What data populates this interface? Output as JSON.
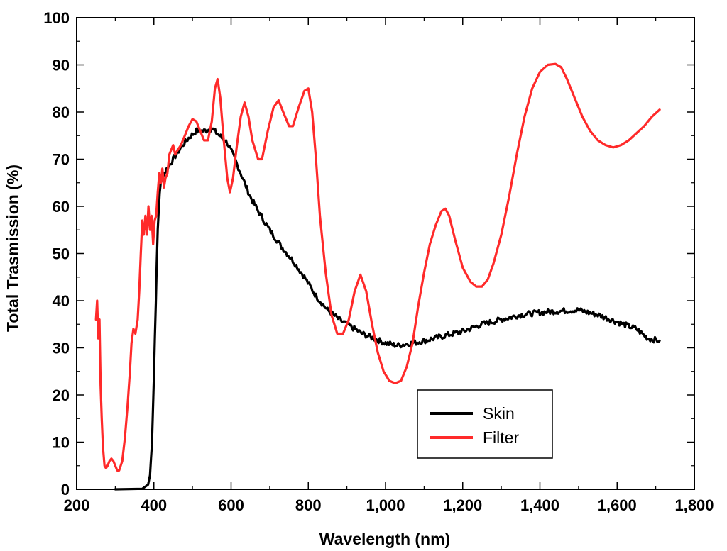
{
  "chart_data": {
    "type": "line",
    "title": "",
    "xlabel": "Wavelength (nm)",
    "ylabel": "Total Trasmission (%)",
    "xlim": [
      200,
      1800
    ],
    "ylim": [
      0,
      100
    ],
    "x_ticks": [
      200,
      400,
      600,
      800,
      1000,
      1200,
      1400,
      1600,
      1800
    ],
    "x_tick_labels": [
      "200",
      "400",
      "600",
      "800",
      "1,000",
      "1,200",
      "1,400",
      "1,600",
      "1,800"
    ],
    "y_ticks": [
      0,
      10,
      20,
      30,
      40,
      50,
      60,
      70,
      80,
      90,
      100
    ],
    "y_tick_labels": [
      "0",
      "10",
      "20",
      "30",
      "40",
      "50",
      "60",
      "70",
      "80",
      "90",
      "100"
    ],
    "grid": false,
    "legend_position": "bottom-right",
    "series": [
      {
        "name": "Skin",
        "color": "#000000",
        "noise": 0.6,
        "points": [
          [
            300,
            0
          ],
          [
            370,
            0.1
          ],
          [
            385,
            1
          ],
          [
            390,
            3
          ],
          [
            395,
            10
          ],
          [
            400,
            24
          ],
          [
            405,
            40
          ],
          [
            410,
            55
          ],
          [
            415,
            63
          ],
          [
            420,
            66
          ],
          [
            430,
            67.5
          ],
          [
            450,
            70
          ],
          [
            470,
            72.5
          ],
          [
            490,
            74.5
          ],
          [
            510,
            76
          ],
          [
            530,
            76
          ],
          [
            550,
            76.5
          ],
          [
            570,
            75
          ],
          [
            590,
            73.5
          ],
          [
            610,
            70
          ],
          [
            630,
            66
          ],
          [
            650,
            62
          ],
          [
            670,
            59
          ],
          [
            700,
            55
          ],
          [
            730,
            51.5
          ],
          [
            760,
            48.5
          ],
          [
            790,
            45
          ],
          [
            820,
            41
          ],
          [
            850,
            38
          ],
          [
            880,
            36
          ],
          [
            910,
            34.5
          ],
          [
            940,
            33
          ],
          [
            970,
            32
          ],
          [
            1000,
            31
          ],
          [
            1030,
            30.5
          ],
          [
            1070,
            31
          ],
          [
            1100,
            31.5
          ],
          [
            1150,
            32.5
          ],
          [
            1200,
            33.5
          ],
          [
            1250,
            35
          ],
          [
            1300,
            36
          ],
          [
            1350,
            37
          ],
          [
            1400,
            37.5
          ],
          [
            1450,
            37.8
          ],
          [
            1500,
            38
          ],
          [
            1550,
            37
          ],
          [
            1600,
            35.5
          ],
          [
            1650,
            34
          ],
          [
            1680,
            32
          ],
          [
            1710,
            31.5
          ]
        ]
      },
      {
        "name": "Filter",
        "color": "#ff2a2a",
        "noise": 0,
        "points": [
          [
            250,
            36
          ],
          [
            253,
            40
          ],
          [
            256,
            32
          ],
          [
            259,
            36
          ],
          [
            262,
            22
          ],
          [
            265,
            15
          ],
          [
            268,
            9
          ],
          [
            272,
            5
          ],
          [
            276,
            4.5
          ],
          [
            280,
            5
          ],
          [
            285,
            6
          ],
          [
            290,
            6.5
          ],
          [
            295,
            6
          ],
          [
            300,
            5
          ],
          [
            305,
            4
          ],
          [
            310,
            4
          ],
          [
            318,
            6
          ],
          [
            325,
            11
          ],
          [
            332,
            18
          ],
          [
            338,
            25
          ],
          [
            342,
            31
          ],
          [
            347,
            34
          ],
          [
            352,
            33
          ],
          [
            358,
            36
          ],
          [
            362,
            42
          ],
          [
            366,
            50
          ],
          [
            370,
            57
          ],
          [
            374,
            54
          ],
          [
            378,
            58
          ],
          [
            382,
            54
          ],
          [
            386,
            60
          ],
          [
            390,
            55
          ],
          [
            394,
            58
          ],
          [
            398,
            52
          ],
          [
            402,
            57
          ],
          [
            406,
            58
          ],
          [
            410,
            63
          ],
          [
            414,
            67
          ],
          [
            418,
            65
          ],
          [
            422,
            68
          ],
          [
            426,
            64
          ],
          [
            430,
            66
          ],
          [
            435,
            67
          ],
          [
            440,
            71
          ],
          [
            445,
            72
          ],
          [
            450,
            73
          ],
          [
            455,
            71
          ],
          [
            462,
            72
          ],
          [
            470,
            73
          ],
          [
            480,
            75
          ],
          [
            490,
            77
          ],
          [
            500,
            78.5
          ],
          [
            510,
            78
          ],
          [
            520,
            76
          ],
          [
            530,
            74
          ],
          [
            540,
            74
          ],
          [
            550,
            78
          ],
          [
            558,
            85
          ],
          [
            565,
            87
          ],
          [
            572,
            83
          ],
          [
            580,
            75
          ],
          [
            590,
            66
          ],
          [
            597,
            63
          ],
          [
            605,
            66
          ],
          [
            615,
            73
          ],
          [
            625,
            79
          ],
          [
            635,
            82
          ],
          [
            645,
            79
          ],
          [
            655,
            74
          ],
          [
            670,
            70
          ],
          [
            680,
            70
          ],
          [
            695,
            76
          ],
          [
            710,
            81
          ],
          [
            723,
            82.5
          ],
          [
            735,
            80
          ],
          [
            750,
            77
          ],
          [
            760,
            77
          ],
          [
            775,
            81
          ],
          [
            790,
            84.5
          ],
          [
            800,
            85
          ],
          [
            810,
            80
          ],
          [
            820,
            70
          ],
          [
            830,
            58
          ],
          [
            845,
            46
          ],
          [
            860,
            37
          ],
          [
            875,
            33
          ],
          [
            890,
            33
          ],
          [
            905,
            36
          ],
          [
            920,
            42
          ],
          [
            935,
            45.5
          ],
          [
            950,
            42
          ],
          [
            965,
            35
          ],
          [
            980,
            29
          ],
          [
            995,
            25
          ],
          [
            1010,
            23
          ],
          [
            1025,
            22.5
          ],
          [
            1040,
            23
          ],
          [
            1055,
            26
          ],
          [
            1070,
            31
          ],
          [
            1085,
            39
          ],
          [
            1100,
            46
          ],
          [
            1115,
            52
          ],
          [
            1130,
            56
          ],
          [
            1145,
            59
          ],
          [
            1155,
            59.5
          ],
          [
            1165,
            58
          ],
          [
            1180,
            53
          ],
          [
            1200,
            47
          ],
          [
            1220,
            44
          ],
          [
            1235,
            43
          ],
          [
            1250,
            43
          ],
          [
            1265,
            44.5
          ],
          [
            1280,
            48
          ],
          [
            1300,
            54
          ],
          [
            1320,
            62
          ],
          [
            1340,
            71
          ],
          [
            1360,
            79
          ],
          [
            1380,
            85
          ],
          [
            1400,
            88.5
          ],
          [
            1420,
            90
          ],
          [
            1440,
            90.2
          ],
          [
            1455,
            89.5
          ],
          [
            1470,
            87
          ],
          [
            1490,
            83
          ],
          [
            1510,
            79
          ],
          [
            1530,
            76
          ],
          [
            1550,
            74
          ],
          [
            1570,
            73
          ],
          [
            1590,
            72.5
          ],
          [
            1610,
            73
          ],
          [
            1630,
            74
          ],
          [
            1650,
            75.5
          ],
          [
            1670,
            77
          ],
          [
            1690,
            79
          ],
          [
            1710,
            80.5
          ]
        ]
      }
    ]
  }
}
